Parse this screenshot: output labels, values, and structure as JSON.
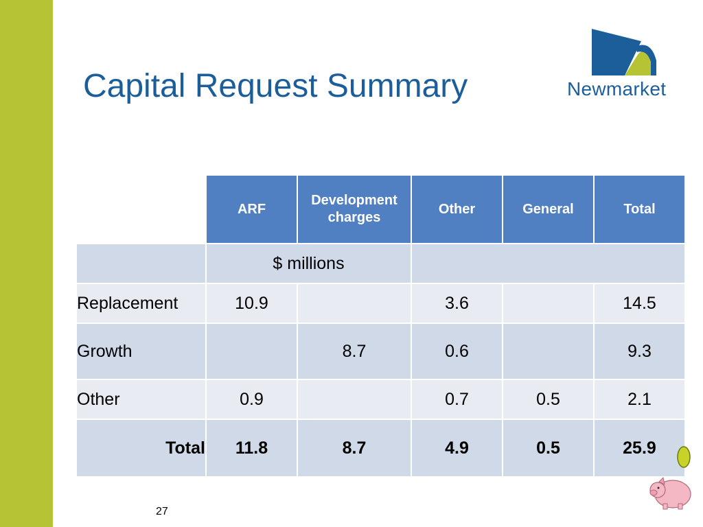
{
  "slide": {
    "title": "Capital Request Summary",
    "page_number": "27"
  },
  "logo": {
    "text": "Newmarket"
  },
  "table": {
    "headers": [
      "ARF",
      "Development charges",
      "Other",
      "General",
      "Total"
    ],
    "units_label": "$ millions",
    "rows": [
      {
        "label": "Replacement",
        "arf": "10.9",
        "dev": "",
        "other": "3.6",
        "general": "",
        "total": "14.5"
      },
      {
        "label": "Growth",
        "arf": "",
        "dev": "8.7",
        "other": "0.6",
        "general": "",
        "total": "9.3"
      },
      {
        "label": "Other",
        "arf": "0.9",
        "dev": "",
        "other": "0.7",
        "general": "0.5",
        "total": "2.1"
      }
    ],
    "total_row": {
      "label": "Total",
      "arf": "11.8",
      "dev": "8.7",
      "other": "4.9",
      "general": "0.5",
      "total": "25.9"
    }
  },
  "colors": {
    "accent_bar": "#b5c334",
    "title": "#1b5e9a",
    "header_fill": "#5080c2",
    "band_dark": "#cfd9e8",
    "band_light": "#e8ebf2"
  },
  "icons": [
    "newmarket-logo-icon",
    "piggy-bank-icon",
    "coin-icon"
  ]
}
